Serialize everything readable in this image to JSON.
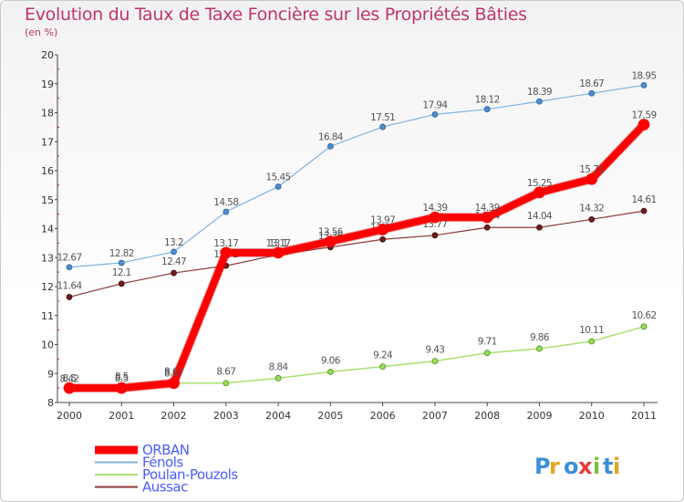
{
  "title": "Evolution du Taux de Taxe Foncière sur les Propriétés Bâties",
  "subtitle": "(en %)",
  "brand": "Proxiti",
  "chart_data": {
    "type": "line",
    "title": "Evolution du Taux de Taxe Foncière sur les Propriétés Bâties",
    "ylabel": "(en %)",
    "x": [
      2000,
      2001,
      2002,
      2003,
      2004,
      2005,
      2006,
      2007,
      2008,
      2009,
      2010,
      2011
    ],
    "y_ticks": [
      8,
      9,
      10,
      11,
      12,
      13,
      14,
      15,
      16,
      17,
      18,
      19,
      20
    ],
    "ylim": [
      8,
      20
    ],
    "grid": false,
    "legend_position": "bottom-left",
    "series": [
      {
        "name": "ORBAN",
        "color": "#ff0000",
        "values": [
          8.5,
          8.5,
          8.67,
          13.17,
          13.17,
          13.56,
          13.97,
          14.39,
          14.39,
          15.25,
          15.71,
          17.59
        ]
      },
      {
        "name": "Fénols",
        "color": "#6699cc",
        "values": [
          12.67,
          12.82,
          13.2,
          14.58,
          15.45,
          16.84,
          17.51,
          17.94,
          18.12,
          18.39,
          18.67,
          18.95
        ]
      },
      {
        "name": "Poulan-Pouzols",
        "color": "#99dd55",
        "values": [
          8.42,
          8.5,
          8.67,
          8.67,
          8.84,
          9.06,
          9.24,
          9.43,
          9.71,
          9.86,
          10.11,
          10.62
        ]
      },
      {
        "name": "Aussac",
        "color": "#7a2a2a",
        "values": [
          11.64,
          12.1,
          12.47,
          12.72,
          13.1,
          13.36,
          13.63,
          13.77,
          14.04,
          14.04,
          14.32,
          14.61
        ]
      }
    ]
  }
}
